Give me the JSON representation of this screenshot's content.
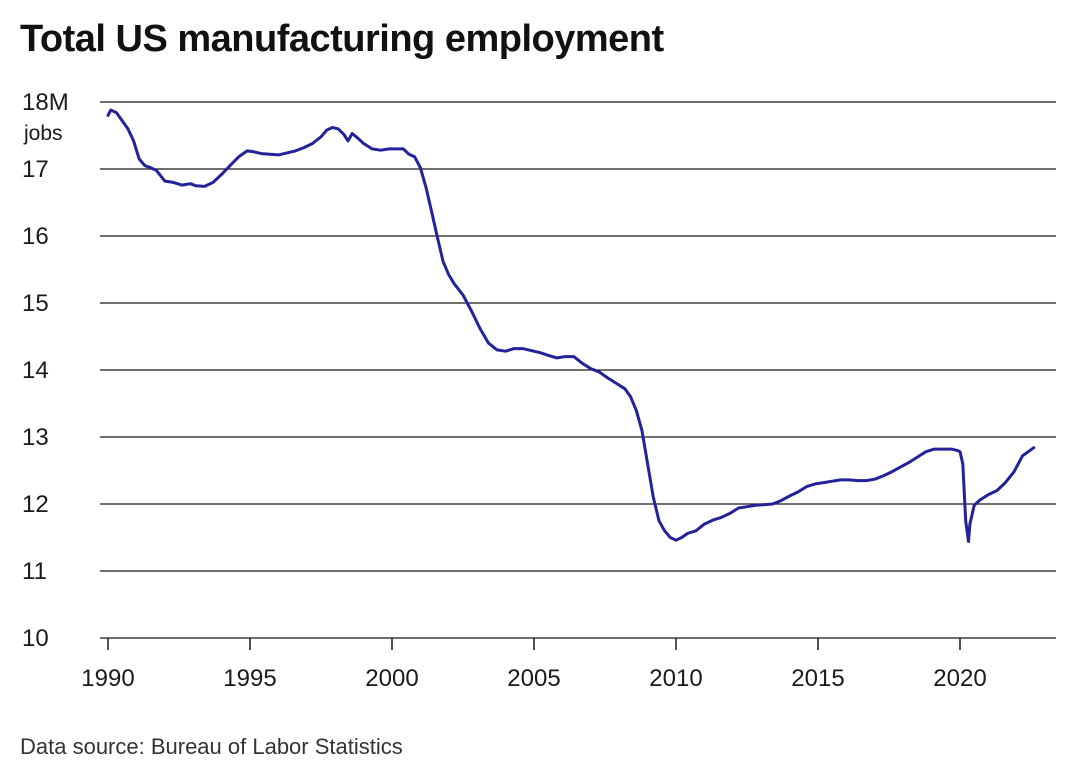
{
  "chart_data": {
    "type": "line",
    "title": "Total US manufacturing employment",
    "source": "Data source: Bureau of Labor Statistics",
    "xlabel": "",
    "ylabel": "",
    "y_unit_label": "jobs",
    "xlim": [
      1990,
      2022.6
    ],
    "ylim": [
      10,
      18
    ],
    "x_ticks": [
      1990,
      1995,
      2000,
      2005,
      2010,
      2015,
      2020
    ],
    "x_tick_labels": [
      "1990",
      "1995",
      "2000",
      "2005",
      "2010",
      "2015",
      "2020"
    ],
    "y_ticks": [
      10,
      11,
      12,
      13,
      14,
      15,
      16,
      17,
      18
    ],
    "y_tick_labels": [
      "10",
      "11",
      "12",
      "13",
      "14",
      "15",
      "16",
      "17",
      "18M"
    ],
    "grid": "horizontal",
    "line_color": "#22229a",
    "series": [
      {
        "x": [
          1990.0,
          1990.1,
          1990.3,
          1990.5,
          1990.7,
          1990.9,
          1991.1,
          1991.3,
          1991.5,
          1991.7,
          1992.0,
          1992.3,
          1992.6,
          1992.9,
          1993.1,
          1993.4,
          1993.7,
          1994.0,
          1994.3,
          1994.6,
          1994.9,
          1995.1,
          1995.4,
          1995.7,
          1996.0,
          1996.3,
          1996.6,
          1996.9,
          1997.2,
          1997.5,
          1997.7,
          1997.9,
          1998.1,
          1998.3,
          1998.45,
          1998.6,
          1998.8,
          1999.0,
          1999.3,
          1999.6,
          1999.9,
          2000.2,
          2000.4,
          2000.6,
          2000.8,
          2001.0,
          2001.2,
          2001.4,
          2001.6,
          2001.8,
          2002.0,
          2002.2,
          2002.5,
          2002.8,
          2003.1,
          2003.4,
          2003.7,
          2004.0,
          2004.3,
          2004.6,
          2004.9,
          2005.2,
          2005.5,
          2005.8,
          2006.1,
          2006.4,
          2006.7,
          2007.0,
          2007.3,
          2007.6,
          2007.9,
          2008.2,
          2008.4,
          2008.6,
          2008.8,
          2009.0,
          2009.2,
          2009.4,
          2009.6,
          2009.8,
          2010.0,
          2010.2,
          2010.4,
          2010.7,
          2011.0,
          2011.3,
          2011.6,
          2011.9,
          2012.2,
          2012.5,
          2012.8,
          2013.1,
          2013.4,
          2013.7,
          2014.0,
          2014.3,
          2014.6,
          2014.9,
          2015.2,
          2015.5,
          2015.8,
          2016.1,
          2016.4,
          2016.7,
          2017.0,
          2017.3,
          2017.6,
          2017.9,
          2018.2,
          2018.5,
          2018.8,
          2019.1,
          2019.4,
          2019.7,
          2019.9,
          2020.0,
          2020.1,
          2020.2,
          2020.3,
          2020.35,
          2020.5,
          2020.7,
          2021.0,
          2021.3,
          2021.6,
          2021.9,
          2022.2,
          2022.6
        ],
        "y": [
          17.8,
          17.88,
          17.84,
          17.72,
          17.6,
          17.42,
          17.15,
          17.05,
          17.02,
          16.98,
          16.82,
          16.8,
          16.76,
          16.78,
          16.75,
          16.74,
          16.8,
          16.92,
          17.05,
          17.18,
          17.27,
          17.26,
          17.23,
          17.22,
          17.21,
          17.24,
          17.27,
          17.32,
          17.38,
          17.48,
          17.58,
          17.62,
          17.6,
          17.52,
          17.42,
          17.53,
          17.46,
          17.38,
          17.3,
          17.28,
          17.3,
          17.3,
          17.3,
          17.22,
          17.18,
          17.02,
          16.72,
          16.35,
          15.98,
          15.62,
          15.42,
          15.28,
          15.12,
          14.88,
          14.62,
          14.4,
          14.3,
          14.28,
          14.32,
          14.32,
          14.29,
          14.26,
          14.22,
          14.18,
          14.2,
          14.2,
          14.1,
          14.02,
          13.97,
          13.88,
          13.8,
          13.72,
          13.6,
          13.4,
          13.1,
          12.6,
          12.1,
          11.75,
          11.6,
          11.5,
          11.46,
          11.5,
          11.56,
          11.6,
          11.7,
          11.76,
          11.8,
          11.86,
          11.94,
          11.96,
          11.98,
          11.99,
          12.0,
          12.05,
          12.12,
          12.18,
          12.26,
          12.3,
          12.32,
          12.34,
          12.36,
          12.36,
          12.35,
          12.35,
          12.37,
          12.42,
          12.48,
          12.55,
          12.62,
          12.7,
          12.78,
          12.82,
          12.82,
          12.82,
          12.8,
          12.78,
          12.6,
          11.75,
          11.44,
          11.7,
          11.98,
          12.06,
          12.14,
          12.2,
          12.32,
          12.48,
          12.72,
          12.84
        ]
      }
    ]
  }
}
